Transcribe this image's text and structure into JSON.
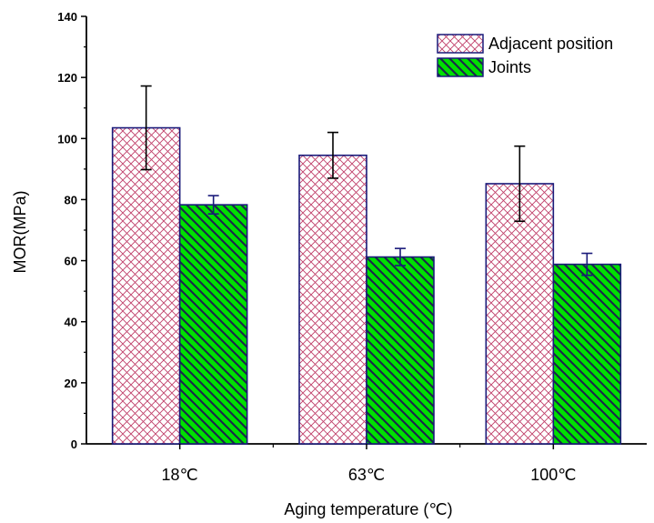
{
  "chart_data": {
    "type": "bar",
    "categories": [
      "18℃",
      "63℃",
      "100℃"
    ],
    "series": [
      {
        "name": "Adjacent position",
        "values": [
          103.5,
          94.5,
          85.2
        ],
        "errors": [
          13.7,
          7.5,
          12.3
        ],
        "fill": "#ffffff",
        "hatch_color": "#c0406a",
        "pattern": "crosshatch"
      },
      {
        "name": "Joints",
        "values": [
          78.3,
          61.2,
          58.8
        ],
        "errors": [
          3.0,
          2.8,
          3.6
        ],
        "fill": "#00e000",
        "hatch_color": "#1a2a4a",
        "pattern": "diagonal"
      }
    ],
    "xlabel": "Aging temperature (℃)",
    "ylabel": "MOR(MPa)",
    "ylim": [
      0,
      140
    ],
    "yticks": [
      "0",
      "20",
      "40",
      "60",
      "80",
      "100",
      "120",
      "140"
    ],
    "legend_position": "top-right",
    "grid": false,
    "bar_border_color": "#1a1a7a"
  }
}
